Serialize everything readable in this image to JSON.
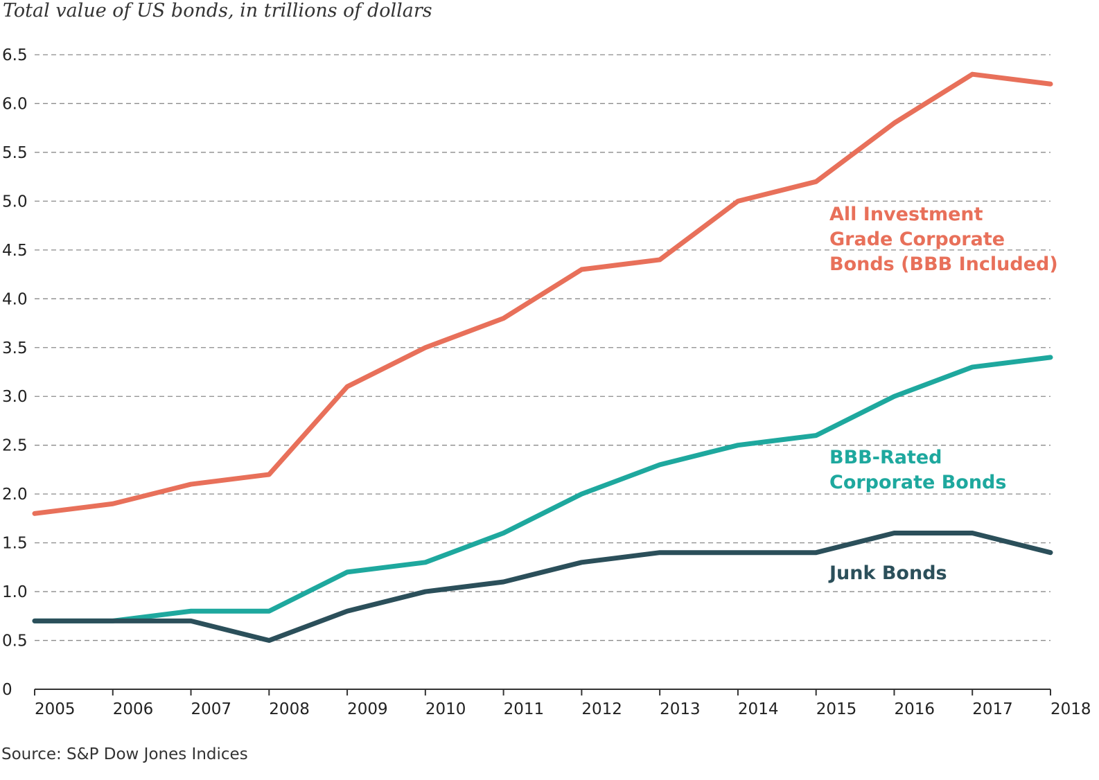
{
  "chart_data": {
    "type": "line",
    "title": "Total value of US bonds, in trillions of dollars",
    "source": "Source: S&P Dow Jones Indices",
    "x": [
      2005,
      2006,
      2007,
      2008,
      2009,
      2010,
      2011,
      2012,
      2013,
      2014,
      2015,
      2016,
      2017,
      2018
    ],
    "x_tick_labels": [
      "2005",
      "2006",
      "2007",
      "2008",
      "2009",
      "2010",
      "2011",
      "2012",
      "2013",
      "2014",
      "2015",
      "2016",
      "2017",
      "2018"
    ],
    "y_tick_labels": [
      "0",
      "0.5",
      "1.0",
      "1.5",
      "2.0",
      "2.5",
      "3.0",
      "3.5",
      "4.0",
      "4.5",
      "5.0",
      "5.5",
      "6.0",
      "6.5"
    ],
    "ylim": [
      0,
      6.5
    ],
    "grid": "horizontal dashed",
    "legend": "inline labels at right",
    "series": [
      {
        "name": "All Investment Grade Corporate Bonds (BBB Included)",
        "label_lines": [
          "All Investment",
          "Grade Corporate",
          "Bonds (BBB Included)"
        ],
        "color": "#e8705a",
        "values": [
          1.8,
          1.9,
          2.1,
          2.2,
          3.1,
          3.5,
          3.8,
          4.3,
          4.4,
          5.0,
          5.2,
          5.8,
          6.3,
          6.2
        ]
      },
      {
        "name": "BBB-Rated Corporate Bonds",
        "label_lines": [
          "BBB-Rated",
          "Corporate Bonds"
        ],
        "color": "#1ea89e",
        "values": [
          0.7,
          0.7,
          0.8,
          0.8,
          1.2,
          1.3,
          1.6,
          2.0,
          2.3,
          2.5,
          2.6,
          3.0,
          3.3,
          3.4
        ]
      },
      {
        "name": "Junk Bonds",
        "label_lines": [
          "Junk Bonds"
        ],
        "color": "#2b4f5a",
        "values": [
          0.7,
          0.7,
          0.7,
          0.5,
          0.8,
          1.0,
          1.1,
          1.3,
          1.4,
          1.4,
          1.4,
          1.6,
          1.6,
          1.4
        ]
      }
    ]
  }
}
